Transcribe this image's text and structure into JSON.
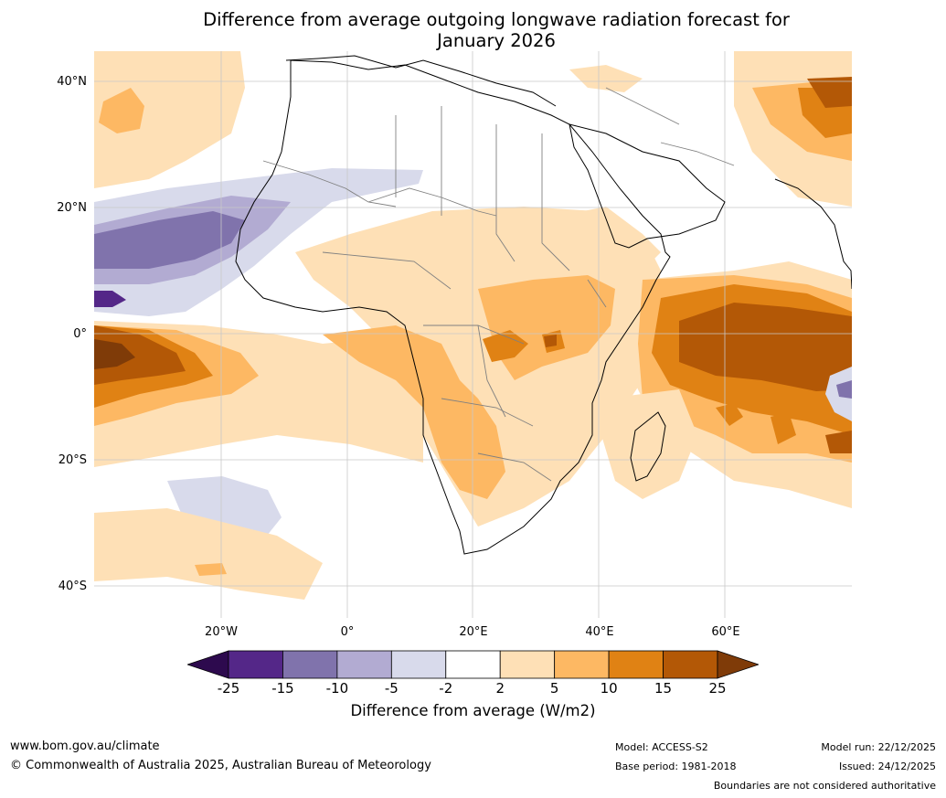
{
  "title_line1": "Difference from average outgoing longwave radiation forecast for",
  "title_line2": "January 2026",
  "lat_labels": [
    "40°N",
    "20°N",
    "0°",
    "20°S",
    "40°S"
  ],
  "lon_labels": [
    "20°W",
    "0°",
    "20°E",
    "40°E",
    "60°E"
  ],
  "colorbar": {
    "ticks": [
      "-25",
      "-15",
      "-10",
      "-5",
      "-2",
      "2",
      "5",
      "10",
      "15",
      "25"
    ],
    "colors": [
      "#2d0a4e",
      "#542788",
      "#8073ac",
      "#b2abd2",
      "#d8daeb",
      "#ffffff",
      "#fee0b6",
      "#fdb863",
      "#e08214",
      "#b35806",
      "#7f3b08"
    ],
    "label": "Difference from average (W/m2)"
  },
  "footer": {
    "website": "www.bom.gov.au/climate",
    "copyright": "© Commonwealth of Australia 2025, Australian Bureau of Meteorology",
    "model": "Model: ACCESS-S2",
    "base_period": "Base period: 1981-2018",
    "model_run": "Model run: 22/12/2025",
    "issued": "Issued: 24/12/2025",
    "disclaimer": "Boundaries are not considered authoritative"
  }
}
